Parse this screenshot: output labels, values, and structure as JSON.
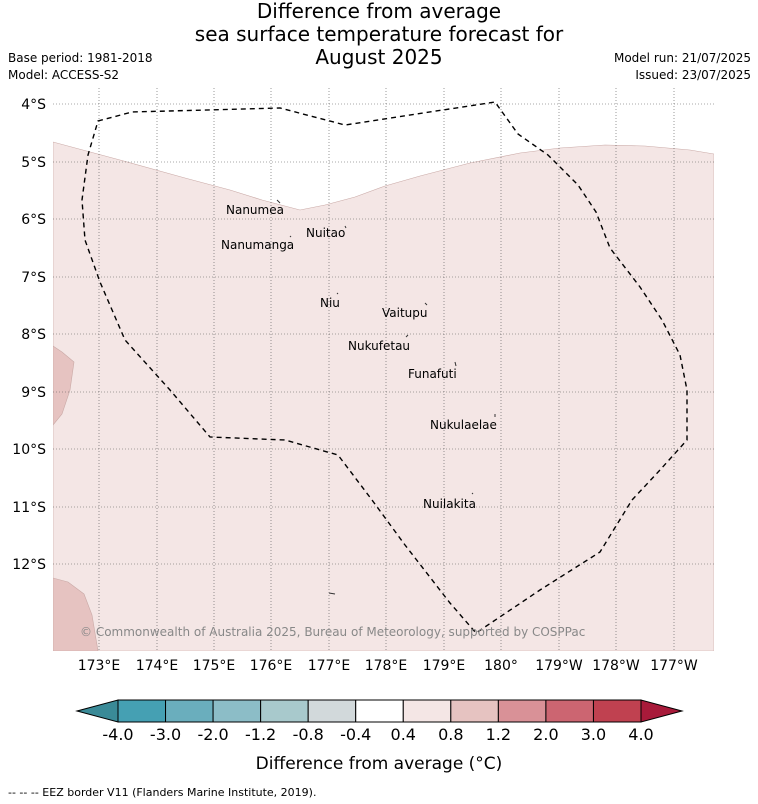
{
  "title": {
    "line1": "Difference from average",
    "line2": "sea surface temperature forecast for",
    "line3": "August 2025"
  },
  "meta": {
    "base_period": "Base period: 1981-2018",
    "model": "Model: ACCESS-S2",
    "model_run": "Model run: 21/07/2025",
    "issued": "Issued: 23/07/2025"
  },
  "map": {
    "lat_labels": [
      "4°S",
      "5°S",
      "6°S",
      "7°S",
      "8°S",
      "9°S",
      "10°S",
      "11°S",
      "12°S"
    ],
    "lon_labels": [
      "173°E",
      "174°E",
      "175°E",
      "176°E",
      "177°E",
      "178°E",
      "179°E",
      "180°",
      "179°W",
      "178°W",
      "177°W"
    ],
    "places": [
      {
        "name": "Nanumea"
      },
      {
        "name": "Nuitao"
      },
      {
        "name": "Nanumanga"
      },
      {
        "name": "Niu"
      },
      {
        "name": "Vaitupu"
      },
      {
        "name": "Nukufetau"
      },
      {
        "name": "Funafuti"
      },
      {
        "name": "Nukulaelae"
      },
      {
        "name": "Nuilakita"
      }
    ],
    "copyright": "© Commonwealth of Australia 2025, Bureau of Meteorology, supported by COSPPac",
    "colors": {
      "anomaly_0_4_to_0_8": "#f4e6e5",
      "anomaly_0_8_to_1_2": "#e6c3c1",
      "no_change": "#ffffff"
    }
  },
  "colorbar": {
    "ticks": [
      "-4.0",
      "-3.0",
      "-2.0",
      "-1.2",
      "-0.8",
      "-0.4",
      "0.4",
      "0.8",
      "1.2",
      "2.0",
      "3.0",
      "4.0"
    ],
    "colors": [
      "#45a0b3",
      "#6aaebd",
      "#8cbdc7",
      "#a8c9cc",
      "#d2d9db",
      "#ffffff",
      "#f4e6e5",
      "#e6c3c1",
      "#d99197",
      "#cc6571",
      "#c04150"
    ],
    "under_color": "#3a8a97",
    "over_color": "#a81a3a",
    "label": "Difference from average (°C)"
  },
  "footer": "--  --  -- EEZ border V11 (Flanders Marine Institute, 2019)."
}
